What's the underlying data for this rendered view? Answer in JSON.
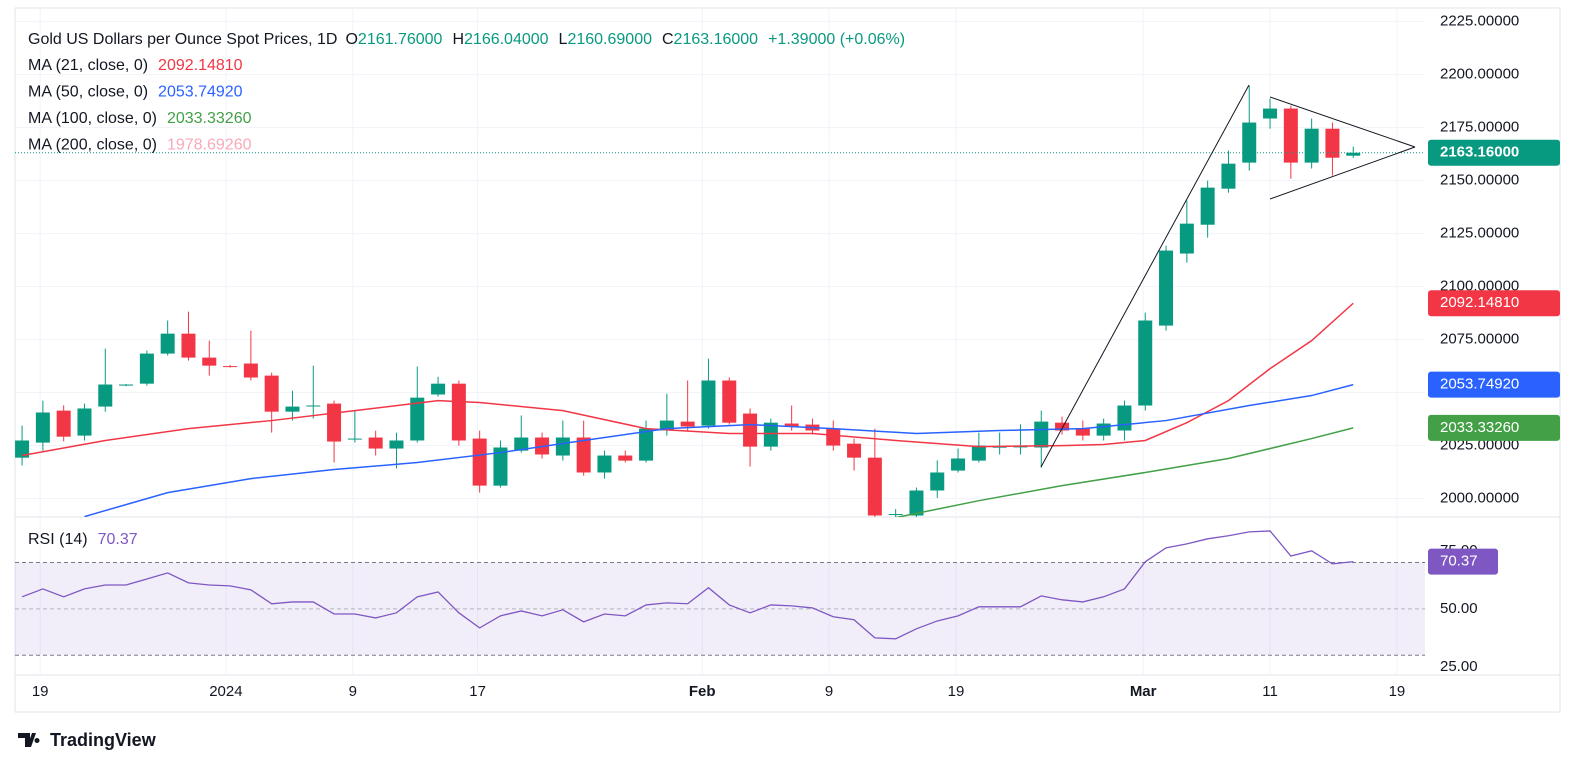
{
  "chart_data": [
    {
      "type": "candlestick",
      "title": "Gold US Dollars per Ounce Spot Prices, 1D",
      "ohlc": [
        {
          "label": "O",
          "value": "2161.76000"
        },
        {
          "label": "H",
          "value": "2166.04000"
        },
        {
          "label": "L",
          "value": "2160.69000"
        },
        {
          "label": "C",
          "value": "2163.16000"
        }
      ],
      "change": "+1.39000 (+0.06%)",
      "up_color": "#089981",
      "down_color": "#f23645",
      "x": [
        0,
        1,
        2,
        3,
        4,
        5,
        6,
        7,
        8,
        9,
        10,
        11,
        12,
        13,
        14,
        15,
        16,
        17,
        18,
        19,
        20,
        21,
        22,
        23,
        24,
        25,
        26,
        27,
        28,
        29,
        30,
        31,
        32,
        33,
        34,
        35,
        36,
        37,
        38,
        39,
        40,
        41,
        42,
        43,
        44,
        45,
        46,
        47,
        48,
        49,
        50,
        51,
        52,
        53,
        54,
        55,
        56,
        57,
        58,
        59,
        60,
        61,
        62,
        63,
        64
      ],
      "open": [
        2019.3,
        2026.4,
        2041.5,
        2029.7,
        2043.4,
        2053.3,
        2054.2,
        2068.4,
        2077.8,
        2066.5,
        2062.5,
        2063.7,
        2058,
        2041,
        2043.7,
        2044.8,
        2028,
        2028.8,
        2023.6,
        2027.4,
        2049.1,
        2054.2,
        2028.3,
        2006.1,
        2022.6,
        2028.8,
        2020.3,
        2028.8,
        2012.3,
        2020.3,
        2017.9,
        2032.1,
        2036.3,
        2034.4,
        2055.7,
        2040.1,
        2024.5,
        2035.4,
        2034.9,
        2033,
        2025.9,
        2019.3,
        1992.3,
        1992,
        2003.8,
        2013.2,
        2017.9,
        2024,
        2024.3,
        2024.1,
        2035.8,
        2033,
        2029.7,
        2032.1,
        2043.9,
        2081.6,
        2115.6,
        2129.2,
        2146.2,
        2158.5,
        2179.3,
        2184,
        2158.5,
        2174.5,
        2161.76
      ],
      "high": [
        2034.4,
        2046.2,
        2044,
        2044.8,
        2070.7,
        2054,
        2069.8,
        2084,
        2088.2,
        2074.5,
        2063,
        2079.2,
        2059.4,
        2050.9,
        2062.7,
        2046.2,
        2041.5,
        2032,
        2031.1,
        2062.3,
        2057.5,
        2055.7,
        2032,
        2027.4,
        2039.2,
        2031.1,
        2036.8,
        2036.8,
        2022.6,
        2022.6,
        2036.8,
        2049.5,
        2055.7,
        2066,
        2057.1,
        2042.5,
        2037.7,
        2043.9,
        2037.7,
        2036.8,
        2028.3,
        2033,
        1995,
        2005.2,
        2018,
        2023.6,
        2031.1,
        2031.1,
        2035,
        2041.5,
        2038.7,
        2036.8,
        2037.7,
        2046.2,
        2087.7,
        2119.3,
        2140.6,
        2150,
        2164.2,
        2194.8,
        2188.7,
        2185.4,
        2179.3,
        2177.4,
        2166.04
      ],
      "low": [
        2015.6,
        2022.6,
        2027,
        2027.4,
        2041,
        2053,
        2053.3,
        2067.5,
        2065.1,
        2058,
        2061.8,
        2055.7,
        2031.1,
        2036.8,
        2037.7,
        2017,
        2026.4,
        2020.3,
        2014.2,
        2026.4,
        2048.1,
        2025,
        2002.8,
        2005.2,
        2021.7,
        2018.9,
        2017.9,
        2010.8,
        2009.4,
        2017,
        2017,
        2029.7,
        2032,
        2033,
        2034.9,
        2015.1,
        2022.6,
        2032,
        2030.2,
        2022.6,
        2013.2,
        1984,
        1990,
        1991,
        2000.3,
        2012.3,
        2017,
        2020.8,
        2020.8,
        2014.6,
        2030.2,
        2027.4,
        2027.4,
        2027.4,
        2041.5,
        2079.2,
        2111.3,
        2123.1,
        2144.3,
        2154.7,
        2174.5,
        2150.9,
        2155.7,
        2152.4,
        2160.69
      ],
      "close": [
        2027.4,
        2040.6,
        2029.2,
        2042.5,
        2053.8,
        2053.8,
        2068.4,
        2077.8,
        2066.5,
        2062.7,
        2062.3,
        2057.1,
        2041,
        2043.4,
        2043.9,
        2026.9,
        2028.3,
        2023.6,
        2027.4,
        2047.6,
        2054.2,
        2027.4,
        2006.1,
        2024.1,
        2028.8,
        2020.8,
        2028.8,
        2012.3,
        2020.3,
        2017.9,
        2033,
        2036.8,
        2034,
        2055.7,
        2035.8,
        2024.5,
        2035.8,
        2034,
        2032.1,
        2025,
        2019.3,
        1992,
        1992.7,
        2003.8,
        2012.3,
        2018.9,
        2025,
        2024.5,
        2024.6,
        2036.3,
        2032.1,
        2029.7,
        2035.4,
        2043.9,
        2084,
        2117,
        2129.7,
        2146.7,
        2158,
        2177.4,
        2184,
        2158.5,
        2174.5,
        2160.8,
        2163.16
      ],
      "last_price_label": "2163.16000",
      "series": [
        {
          "name": "MA (21, close, 0)",
          "value_label": "2092.14810",
          "color": "#f23645",
          "x": [
            0,
            4,
            8,
            12,
            16,
            20,
            22,
            26,
            30,
            34,
            38,
            42,
            46,
            50,
            52,
            54,
            56,
            58,
            60,
            62,
            64
          ],
          "values": [
            2020.3,
            2027.4,
            2033,
            2036.8,
            2041.5,
            2046.2,
            2045.3,
            2041.5,
            2033,
            2030.7,
            2030.7,
            2027.4,
            2024.5,
            2025,
            2025.5,
            2027.4,
            2035.8,
            2046.2,
            2061.3,
            2074.5,
            2092.1481
          ]
        },
        {
          "name": "MA (50, close, 0)",
          "value_label": "2053.74920",
          "color": "#2962ff",
          "x": [
            3,
            7,
            11,
            15,
            19,
            23,
            27,
            31,
            35,
            39,
            43,
            47,
            51,
            55,
            59,
            62,
            64
          ],
          "values": [
            1991.5,
            2002.8,
            2009.4,
            2013.7,
            2017,
            2021.7,
            2027.4,
            2033,
            2034.9,
            2033,
            2030.7,
            2032.1,
            2033,
            2036.8,
            2043.9,
            2048.6,
            2053.7492
          ]
        },
        {
          "name": "MA (100, close, 0)",
          "value_label": "2033.33260",
          "color": "#43a047",
          "x": [
            42,
            46,
            50,
            54,
            58,
            62,
            64
          ],
          "values": [
            1991,
            1999,
            2006.1,
            2012.3,
            2018.9,
            2028.3,
            2033.3326
          ]
        },
        {
          "name": "MA (200, close, 0)",
          "value_label": "1978.69260",
          "color": "#f7a9b8"
        }
      ],
      "xlim": [
        -0.34,
        67.45
      ],
      "ylim": [
        1991.3,
        2230.5
      ],
      "yticks": [
        {
          "value": 2000,
          "label": "2000.00000"
        },
        {
          "value": 2025,
          "label": "2025.00000"
        },
        {
          "value": 2050,
          "label": "2050.00000"
        },
        {
          "value": 2075,
          "label": "2075.00000"
        },
        {
          "value": 2100,
          "label": "2100.00000"
        },
        {
          "value": 2125,
          "label": "2125.00000"
        },
        {
          "value": 2150,
          "label": "2150.00000"
        },
        {
          "value": 2175,
          "label": "2175.00000"
        },
        {
          "value": 2200,
          "label": "2200.00000"
        },
        {
          "value": 2225,
          "label": "2225.00000"
        }
      ],
      "xticks": [
        {
          "value": 0.87,
          "label": "19"
        },
        {
          "value": 9.8,
          "label": "2024"
        },
        {
          "value": 15.9,
          "label": "9"
        },
        {
          "value": 21.9,
          "label": "17"
        },
        {
          "value": 32.7,
          "label": "Feb"
        },
        {
          "value": 38.8,
          "label": "9"
        },
        {
          "value": 44.9,
          "label": "19"
        },
        {
          "value": 53.9,
          "label": "Mar"
        },
        {
          "value": 60,
          "label": "11"
        },
        {
          "value": 66.1,
          "label": "19"
        }
      ],
      "grid": true
    },
    {
      "type": "line",
      "title": "RSI (14)",
      "value_label": "70.37",
      "color": "#7e57c2",
      "x": [
        0,
        1,
        2,
        3,
        4,
        5,
        6,
        7,
        8,
        9,
        10,
        11,
        12,
        13,
        14,
        15,
        16,
        17,
        18,
        19,
        20,
        21,
        22,
        23,
        24,
        25,
        26,
        27,
        28,
        29,
        30,
        31,
        32,
        33,
        34,
        35,
        36,
        37,
        38,
        39,
        40,
        41,
        42,
        43,
        44,
        45,
        46,
        47,
        48,
        49,
        50,
        51,
        52,
        53,
        54,
        55,
        56,
        57,
        58,
        59,
        60,
        61,
        62,
        63,
        64
      ],
      "values": [
        55.2,
        58.6,
        55.2,
        58.6,
        60.3,
        60.3,
        62.9,
        65.5,
        61.2,
        60.3,
        59.9,
        58.2,
        52.2,
        53,
        53,
        47.8,
        47.8,
        46.1,
        48.3,
        55.2,
        57.3,
        48.3,
        41.8,
        47,
        49.1,
        47,
        49.6,
        44.4,
        47.8,
        47,
        51.7,
        52.6,
        52.2,
        59.1,
        51.7,
        48.3,
        51.7,
        51.3,
        50.4,
        46.6,
        45.3,
        37.5,
        37.1,
        41.4,
        44.8,
        47,
        50.9,
        50.9,
        50.9,
        55.6,
        53.9,
        53,
        55.2,
        58.6,
        70.3,
        76.3,
        78,
        80.2,
        81.5,
        83.2,
        83.6,
        72.8,
        75,
        69.4,
        70.37
      ],
      "levels": [
        30,
        70
      ],
      "xlim": [
        -0.34,
        67.45
      ],
      "ylim": [
        21.5,
        89.6
      ],
      "yticks": [
        {
          "value": 25,
          "label": "25.00"
        },
        {
          "value": 50,
          "label": "50.00"
        },
        {
          "value": 75,
          "label": "75.00"
        }
      ]
    }
  ],
  "footer": {
    "brand": "TradingView"
  }
}
